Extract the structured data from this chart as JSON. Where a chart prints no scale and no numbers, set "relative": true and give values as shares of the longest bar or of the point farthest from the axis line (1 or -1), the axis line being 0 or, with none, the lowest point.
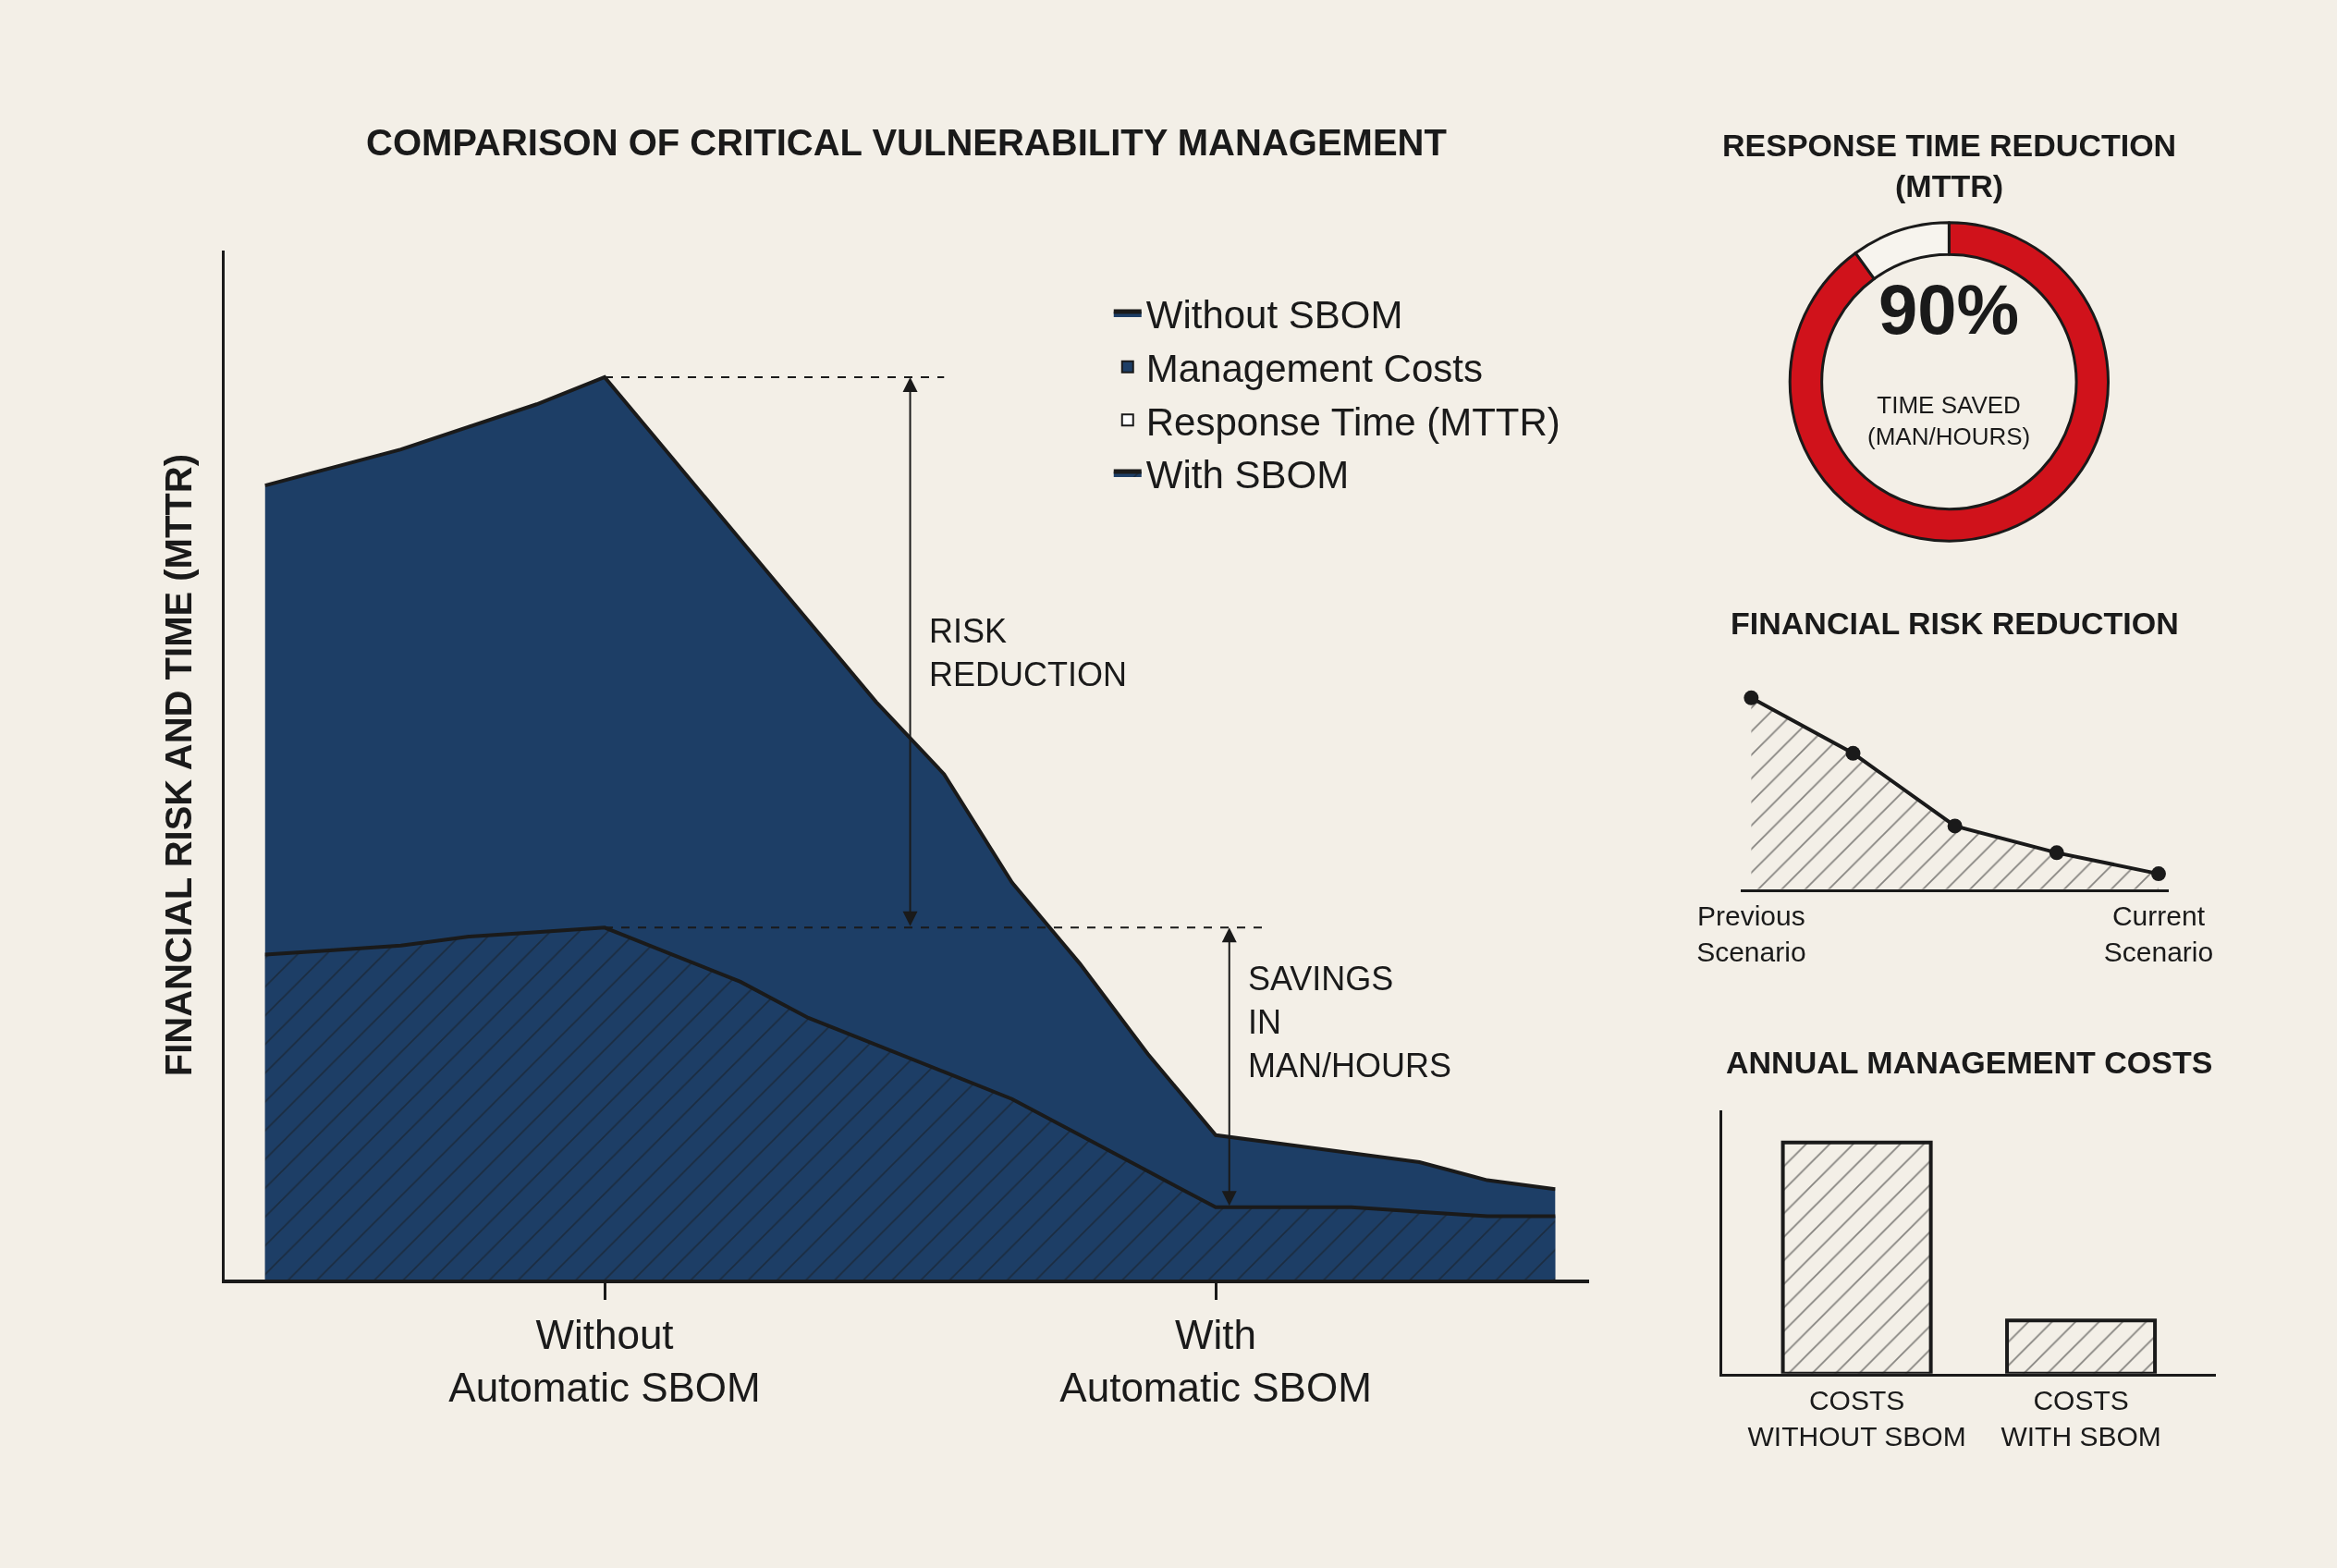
{
  "chart_data": [
    {
      "type": "area",
      "title": "COMPARISON OF CRITICAL VULNERABILITY MANAGEMENT",
      "ylabel": "FINANCIAL RISK AND TIME (MTTR)",
      "relative": true,
      "legend": "top right",
      "categories": [
        null,
        null,
        null,
        null,
        null,
        "Without\nAutomatic SBOM",
        null,
        null,
        null,
        null,
        null,
        null,
        null,
        null,
        "With\nAutomatic SBOM",
        null,
        null,
        null,
        null,
        null
      ],
      "series": [
        {
          "name": "Without SBOM",
          "color": "#1d3e66",
          "values": [
            0.88,
            0.9,
            0.92,
            0.945,
            0.97,
            1.0,
            0.91,
            0.82,
            0.73,
            0.64,
            0.56,
            0.44,
            0.35,
            0.25,
            0.16,
            0.15,
            0.14,
            0.13,
            0.11,
            0.1
          ]
        },
        {
          "name": "Management Costs",
          "color": "#1d3e66",
          "values": [
            null,
            null,
            null,
            null,
            null,
            null,
            null,
            null,
            null,
            null,
            null,
            null,
            null,
            null,
            null,
            null,
            null,
            null,
            null,
            null
          ]
        },
        {
          "name": "Response Time (MTTR)",
          "color": "#ffffff",
          "values": [
            null,
            null,
            null,
            null,
            null,
            null,
            null,
            null,
            null,
            null,
            null,
            null,
            null,
            null,
            null,
            null,
            null,
            null,
            null,
            null
          ]
        },
        {
          "name": "With SBOM",
          "color": "#1d3e66",
          "values": [
            0.36,
            0.365,
            0.37,
            0.38,
            0.385,
            0.39,
            0.36,
            0.33,
            0.29,
            0.26,
            0.23,
            0.2,
            0.16,
            0.12,
            0.08,
            0.08,
            0.08,
            0.075,
            0.07,
            0.07
          ]
        }
      ],
      "ref_lines": [
        {
          "axis": "y",
          "value": 1.0,
          "line_style": "dashed"
        },
        {
          "axis": "y",
          "value": 0.39,
          "line_style": "dashed"
        }
      ],
      "annotations": [
        "RISK\nREDUCTION",
        "SAVINGS\nIN\nMAN/HOURS"
      ]
    },
    {
      "type": "donut",
      "title": "RESPONSE TIME REDUCTION\n(MTTR)",
      "categories": [
        null,
        null
      ],
      "values": [
        90,
        10
      ],
      "colors": [
        "#d0121b",
        "#f7f4ee"
      ],
      "annotations": [
        "90%",
        "TIME SAVED\n(MAN/HOURS)"
      ]
    },
    {
      "type": "area",
      "title": "FINANCIAL RISK REDUCTION",
      "relative": true,
      "marker": "circle",
      "categories": [
        "Previous\nScenario",
        null,
        null,
        null,
        "Current\nScenario"
      ],
      "series": [
        {
          "color": "#1a1a1a",
          "values": [
            1,
            0.71,
            0.33,
            0.19,
            0.08
          ]
        }
      ]
    },
    {
      "type": "bar",
      "title": "ANNUAL MANAGEMENT COSTS",
      "relative": true,
      "categories": [
        "COSTS\nWITHOUT SBOM",
        "COSTS\nWITH SBOM"
      ],
      "values": [
        1,
        0.23
      ],
      "color": "#1a1a1a"
    }
  ]
}
